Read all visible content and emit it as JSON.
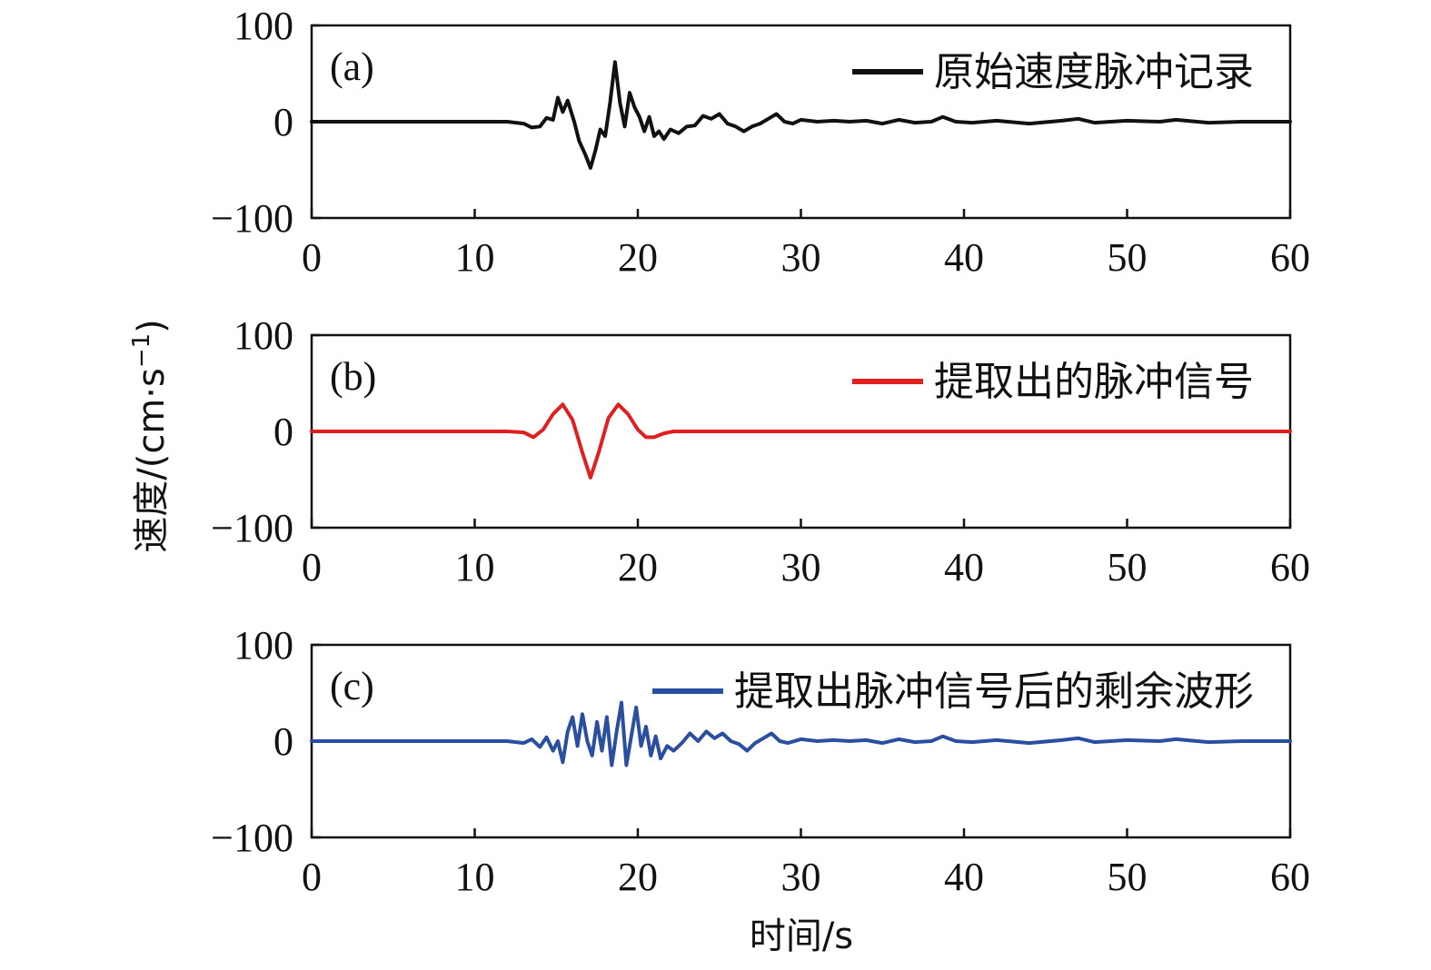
{
  "chart_data": [
    {
      "type": "line",
      "panel_label": "(a)",
      "xlim": [
        0,
        60
      ],
      "ylim": [
        -100,
        100
      ],
      "x_ticks": [
        0,
        10,
        20,
        30,
        40,
        50,
        60
      ],
      "y_ticks": [
        -100,
        0,
        100
      ],
      "y_tick_labels": [
        "−100",
        "0",
        "100"
      ],
      "legend_placement": "top-right",
      "series": [
        {
          "name": "原始速度脉冲记录",
          "color": "#111111",
          "x": [
            0,
            12,
            13,
            13.5,
            14,
            14.4,
            14.8,
            15.1,
            15.4,
            15.7,
            16.1,
            16.4,
            16.8,
            17.1,
            17.4,
            17.7,
            18.0,
            18.3,
            18.6,
            18.9,
            19.2,
            19.5,
            19.8,
            20.1,
            20.4,
            20.7,
            21.0,
            21.3,
            21.6,
            22.0,
            22.5,
            23.0,
            23.5,
            24.0,
            24.5,
            25.0,
            25.5,
            26.0,
            26.5,
            27.0,
            27.5,
            28.0,
            28.5,
            29.0,
            29.5,
            30.0,
            31,
            32,
            33,
            34,
            35,
            36,
            37,
            38,
            38.7,
            39.5,
            40.5,
            42,
            44,
            46,
            47,
            48,
            50,
            52,
            53,
            55,
            57,
            60
          ],
          "y": [
            0,
            0,
            -2,
            -6,
            -5,
            4,
            2,
            25,
            10,
            22,
            0,
            -20,
            -35,
            -48,
            -30,
            -8,
            -15,
            20,
            62,
            20,
            -5,
            30,
            15,
            5,
            -10,
            5,
            -15,
            -10,
            -18,
            -8,
            -12,
            -5,
            -4,
            6,
            3,
            8,
            -2,
            -5,
            -10,
            -5,
            -2,
            3,
            8,
            0,
            -2,
            2,
            0,
            1,
            0,
            1,
            -2,
            2,
            -1,
            0,
            5,
            0,
            -1,
            1,
            -2,
            1,
            3,
            -1,
            1,
            0,
            2,
            -1,
            0,
            0
          ]
        }
      ]
    },
    {
      "type": "line",
      "panel_label": "(b)",
      "xlim": [
        0,
        60
      ],
      "ylim": [
        -100,
        100
      ],
      "x_ticks": [
        0,
        10,
        20,
        30,
        40,
        50,
        60
      ],
      "y_ticks": [
        -100,
        0,
        100
      ],
      "y_tick_labels": [
        "−100",
        "0",
        "100"
      ],
      "legend_placement": "top-right",
      "series": [
        {
          "name": "提取出的脉冲信号",
          "color": "#e02020",
          "x": [
            0,
            12,
            13,
            13.6,
            14.2,
            14.8,
            15.4,
            16.0,
            16.6,
            17.1,
            17.6,
            18.2,
            18.8,
            19.4,
            20.0,
            20.5,
            21.0,
            21.6,
            22.2,
            23.0,
            60
          ],
          "y": [
            0,
            0,
            -1,
            -6,
            2,
            18,
            28,
            12,
            -22,
            -48,
            -22,
            14,
            28,
            18,
            2,
            -6,
            -6,
            -2,
            0,
            0,
            0
          ]
        }
      ]
    },
    {
      "type": "line",
      "panel_label": "(c)",
      "xlim": [
        0,
        60
      ],
      "ylim": [
        -100,
        100
      ],
      "x_ticks": [
        0,
        10,
        20,
        30,
        40,
        50,
        60
      ],
      "y_ticks": [
        -100,
        0,
        100
      ],
      "y_tick_labels": [
        "−100",
        "0",
        "100"
      ],
      "legend_placement": "top-right",
      "series": [
        {
          "name": "提取出脉冲信号后的剩余波形",
          "color": "#2b4fa0",
          "x": [
            0,
            12,
            13,
            13.5,
            14,
            14.4,
            14.8,
            15.1,
            15.4,
            15.7,
            16.0,
            16.3,
            16.6,
            16.9,
            17.2,
            17.5,
            17.8,
            18.1,
            18.4,
            18.7,
            19.0,
            19.3,
            19.6,
            19.9,
            20.2,
            20.5,
            20.8,
            21.1,
            21.4,
            21.8,
            22.2,
            22.7,
            23.2,
            23.7,
            24.2,
            24.7,
            25.2,
            25.7,
            26.2,
            26.7,
            27.2,
            27.7,
            28.2,
            28.7,
            29.2,
            30,
            31,
            32,
            33,
            34,
            35,
            36,
            37,
            38,
            38.7,
            39.5,
            40.5,
            42,
            44,
            46,
            47,
            48,
            50,
            52,
            53,
            55,
            57,
            60
          ],
          "y": [
            0,
            0,
            -2,
            2,
            -6,
            4,
            -10,
            0,
            -22,
            10,
            25,
            -5,
            28,
            0,
            -15,
            20,
            -10,
            25,
            -25,
            10,
            40,
            -25,
            5,
            35,
            -5,
            15,
            -15,
            5,
            -18,
            -5,
            -10,
            -2,
            8,
            0,
            10,
            3,
            8,
            0,
            -3,
            -10,
            -2,
            3,
            8,
            0,
            -2,
            2,
            0,
            1,
            0,
            1,
            -2,
            2,
            -1,
            0,
            5,
            0,
            -1,
            1,
            -2,
            1,
            3,
            -1,
            1,
            0,
            2,
            -1,
            0,
            0
          ]
        }
      ]
    }
  ],
  "axes": {
    "ylabel": "速度/(cm·s",
    "ylabel_sup": "−1",
    "ylabel_close": ")",
    "xlabel": "时间/s"
  }
}
